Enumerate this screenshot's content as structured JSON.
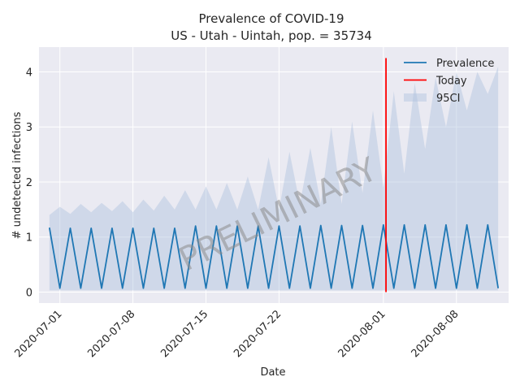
{
  "chart_data": {
    "type": "line",
    "title": "Prevalence of COVID-19",
    "subtitle": "US - Utah - Uintah, pop. = 35734",
    "xlabel": "Date",
    "ylabel": "# undetected infections",
    "x_tick_labels": [
      "2020-07-01",
      "2020-07-08",
      "2020-07-15",
      "2020-07-22",
      "2020-08-01",
      "2020-08-08"
    ],
    "x_tick_dates": [
      "2020-07-01",
      "2020-07-08",
      "2020-07-15",
      "2020-07-22",
      "2020-08-01",
      "2020-08-08"
    ],
    "y_ticks": [
      0,
      1,
      2,
      3,
      4
    ],
    "ylim": [
      -0.2,
      4.45
    ],
    "xlim": [
      "2020-06-29T00:00",
      "2020-08-13T00:00"
    ],
    "grid": true,
    "legend_position": "top-right",
    "today": "2020-08-01T06:00",
    "watermark": "PRELIMINARY",
    "colors": {
      "prevalence": "#1f77b4",
      "today": "#ff0000",
      "ci": "#b0c4de",
      "background": "#eaeaf2",
      "grid": "#ffffff"
    },
    "legend": [
      {
        "label": "Prevalence",
        "kind": "line",
        "color": "#1f77b4"
      },
      {
        "label": "Today",
        "kind": "line",
        "color": "#ff0000"
      },
      {
        "label": "95CI",
        "kind": "patch",
        "color": "#b0c4de"
      }
    ],
    "series": [
      {
        "name": "Prevalence",
        "points": [
          [
            "2020-06-30T00:00",
            1.17
          ],
          [
            "2020-07-01T00:00",
            0.07
          ],
          [
            "2020-07-02T00:00",
            1.16
          ],
          [
            "2020-07-03T00:00",
            0.07
          ],
          [
            "2020-07-04T00:00",
            1.16
          ],
          [
            "2020-07-05T00:00",
            0.07
          ],
          [
            "2020-07-06T00:00",
            1.16
          ],
          [
            "2020-07-07T00:00",
            0.07
          ],
          [
            "2020-07-08T00:00",
            1.16
          ],
          [
            "2020-07-09T00:00",
            0.07
          ],
          [
            "2020-07-10T00:00",
            1.16
          ],
          [
            "2020-07-11T00:00",
            0.07
          ],
          [
            "2020-07-12T00:00",
            1.16
          ],
          [
            "2020-07-13T00:00",
            0.07
          ],
          [
            "2020-07-14T00:00",
            1.2
          ],
          [
            "2020-07-15T00:00",
            0.07
          ],
          [
            "2020-07-16T00:00",
            1.2
          ],
          [
            "2020-07-17T00:00",
            0.07
          ],
          [
            "2020-07-18T00:00",
            1.2
          ],
          [
            "2020-07-19T00:00",
            0.07
          ],
          [
            "2020-07-20T00:00",
            1.2
          ],
          [
            "2020-07-21T00:00",
            0.07
          ],
          [
            "2020-07-22T00:00",
            1.2
          ],
          [
            "2020-07-23T00:00",
            0.07
          ],
          [
            "2020-07-24T00:00",
            1.2
          ],
          [
            "2020-07-25T00:00",
            0.07
          ],
          [
            "2020-07-26T00:00",
            1.21
          ],
          [
            "2020-07-27T00:00",
            0.07
          ],
          [
            "2020-07-28T00:00",
            1.21
          ],
          [
            "2020-07-29T00:00",
            0.07
          ],
          [
            "2020-07-30T00:00",
            1.21
          ],
          [
            "2020-07-31T00:00",
            0.07
          ],
          [
            "2020-08-01T00:00",
            1.22
          ],
          [
            "2020-08-02T00:00",
            0.07
          ],
          [
            "2020-08-03T00:00",
            1.22
          ],
          [
            "2020-08-04T00:00",
            0.07
          ],
          [
            "2020-08-05T00:00",
            1.22
          ],
          [
            "2020-08-06T00:00",
            0.07
          ],
          [
            "2020-08-07T00:00",
            1.22
          ],
          [
            "2020-08-08T00:00",
            0.07
          ],
          [
            "2020-08-09T00:00",
            1.22
          ],
          [
            "2020-08-10T00:00",
            0.07
          ],
          [
            "2020-08-11T00:00",
            1.22
          ],
          [
            "2020-08-12T00:00",
            0.07
          ]
        ]
      },
      {
        "name": "95CI",
        "upper": [
          [
            "2020-06-30T00:00",
            1.4
          ],
          [
            "2020-07-01T00:00",
            1.55
          ],
          [
            "2020-07-02T00:00",
            1.42
          ],
          [
            "2020-07-03T00:00",
            1.6
          ],
          [
            "2020-07-04T00:00",
            1.45
          ],
          [
            "2020-07-05T00:00",
            1.62
          ],
          [
            "2020-07-06T00:00",
            1.47
          ],
          [
            "2020-07-07T00:00",
            1.65
          ],
          [
            "2020-07-08T00:00",
            1.45
          ],
          [
            "2020-07-09T00:00",
            1.68
          ],
          [
            "2020-07-10T00:00",
            1.48
          ],
          [
            "2020-07-11T00:00",
            1.75
          ],
          [
            "2020-07-12T00:00",
            1.5
          ],
          [
            "2020-07-13T00:00",
            1.85
          ],
          [
            "2020-07-14T00:00",
            1.5
          ],
          [
            "2020-07-15T00:00",
            1.92
          ],
          [
            "2020-07-16T00:00",
            1.5
          ],
          [
            "2020-07-17T00:00",
            1.98
          ],
          [
            "2020-07-18T00:00",
            1.5
          ],
          [
            "2020-07-19T00:00",
            2.1
          ],
          [
            "2020-07-20T00:00",
            1.5
          ],
          [
            "2020-07-21T00:00",
            2.45
          ],
          [
            "2020-07-22T00:00",
            1.5
          ],
          [
            "2020-07-23T00:00",
            2.55
          ],
          [
            "2020-07-24T00:00",
            1.6
          ],
          [
            "2020-07-25T00:00",
            2.62
          ],
          [
            "2020-07-26T00:00",
            1.6
          ],
          [
            "2020-07-27T00:00",
            3.0
          ],
          [
            "2020-07-28T00:00",
            1.6
          ],
          [
            "2020-07-29T00:00",
            3.1
          ],
          [
            "2020-07-30T00:00",
            1.8
          ],
          [
            "2020-07-31T00:00",
            3.3
          ],
          [
            "2020-08-01T00:00",
            1.9
          ],
          [
            "2020-08-02T00:00",
            3.65
          ],
          [
            "2020-08-03T00:00",
            2.15
          ],
          [
            "2020-08-04T00:00",
            3.8
          ],
          [
            "2020-08-05T00:00",
            2.6
          ],
          [
            "2020-08-06T00:00",
            3.9
          ],
          [
            "2020-08-07T00:00",
            3.0
          ],
          [
            "2020-08-08T00:00",
            4.0
          ],
          [
            "2020-08-09T00:00",
            3.3
          ],
          [
            "2020-08-10T00:00",
            4.0
          ],
          [
            "2020-08-11T00:00",
            3.6
          ],
          [
            "2020-08-12T00:00",
            4.1
          ]
        ],
        "lower": [
          [
            "2020-06-30T00:00",
            0.03
          ],
          [
            "2020-08-12T00:00",
            0.03
          ]
        ]
      }
    ]
  }
}
